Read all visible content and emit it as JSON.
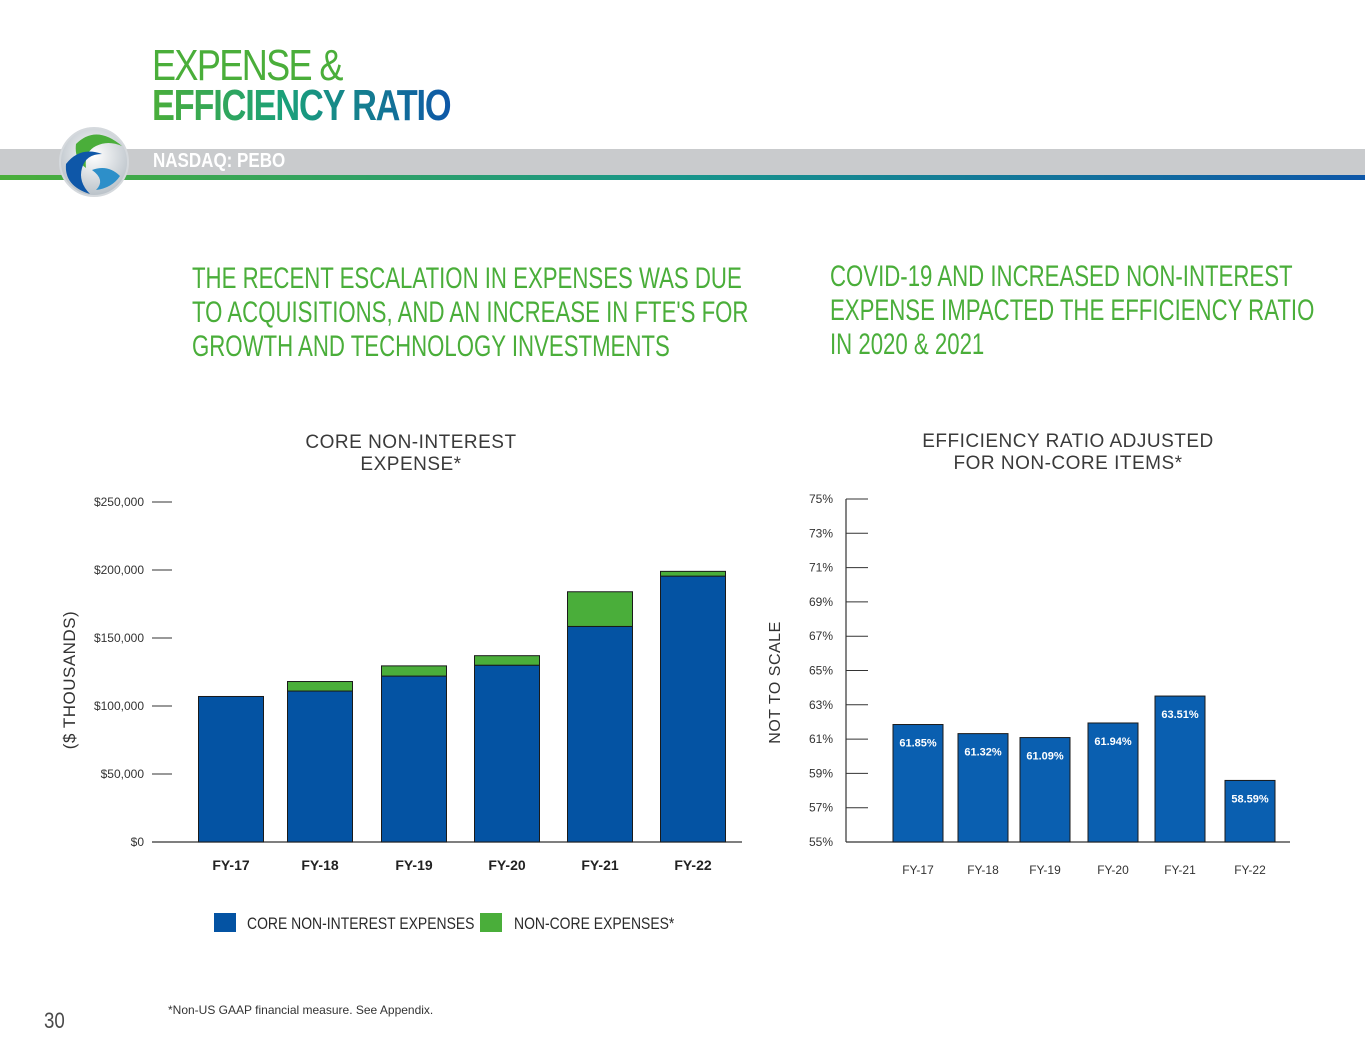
{
  "header": {
    "title_line1": "EXPENSE &",
    "title_line2": "EFFICIENCY RATIO",
    "ticker": "NASDAQ: PEBO"
  },
  "headlines": {
    "left": [
      "THE RECENT ESCALATION IN EXPENSES WAS DUE",
      "TO ACQUISITIONS, AND AN INCREASE IN FTE'S FOR",
      "GROWTH AND TECHNOLOGY INVESTMENTS"
    ],
    "right": [
      "COVID-19 AND INCREASED NON-INTEREST",
      "EXPENSE IMPACTED THE EFFICIENCY RATIO",
      "IN 2020 & 2021"
    ]
  },
  "legend": {
    "core_label": "CORE NON-INTEREST EXPENSES",
    "noncore_label": "NON-CORE EXPENSES*"
  },
  "footnote": "*Non-US GAAP financial measure. See Appendix.",
  "page_number": "30",
  "colors": {
    "core": "#0453a3",
    "noncore": "#4aae3a",
    "ratio_bar": "#0a5fb0",
    "green": "#4aae3a"
  },
  "chart_data": [
    {
      "type": "bar",
      "stacked": true,
      "title": [
        "CORE NON-INTEREST",
        "EXPENSE*"
      ],
      "ylabel": "($ THOUSANDS)",
      "categories": [
        "FY-17",
        "FY-18",
        "FY-19",
        "FY-20",
        "FY-21",
        "FY-22"
      ],
      "ylim": [
        0,
        250000
      ],
      "yticks": [
        0,
        50000,
        100000,
        150000,
        200000,
        250000
      ],
      "ytick_labels": [
        "$0",
        "$50,000",
        "$100,000",
        "$150,000",
        "$200,000",
        "$250,000"
      ],
      "series": [
        {
          "name": "CORE NON-INTEREST EXPENSES",
          "values": [
            107000,
            111000,
            122000,
            130000,
            158500,
            195500
          ]
        },
        {
          "name": "NON-CORE EXPENSES*",
          "values": [
            0,
            7000,
            7500,
            7000,
            25500,
            3500
          ]
        }
      ]
    },
    {
      "type": "bar",
      "title": [
        "EFFICIENCY RATIO ADJUSTED",
        "FOR NON-CORE ITEMS*"
      ],
      "ylabel": "NOT TO SCALE",
      "categories": [
        "FY-17",
        "FY-18",
        "FY-19",
        "FY-20",
        "FY-21",
        "FY-22"
      ],
      "values": [
        61.85,
        61.32,
        61.09,
        61.94,
        63.51,
        58.59
      ],
      "value_labels": [
        "61.85%",
        "61.32%",
        "61.09%",
        "61.94%",
        "63.51%",
        "58.59%"
      ],
      "ylim": [
        55,
        75
      ],
      "yticks": [
        55,
        57,
        59,
        61,
        63,
        65,
        67,
        69,
        71,
        73,
        75
      ],
      "ytick_labels": [
        "55%",
        "57%",
        "59%",
        "61%",
        "63%",
        "65%",
        "67%",
        "69%",
        "71%",
        "73%",
        "75%"
      ]
    }
  ]
}
